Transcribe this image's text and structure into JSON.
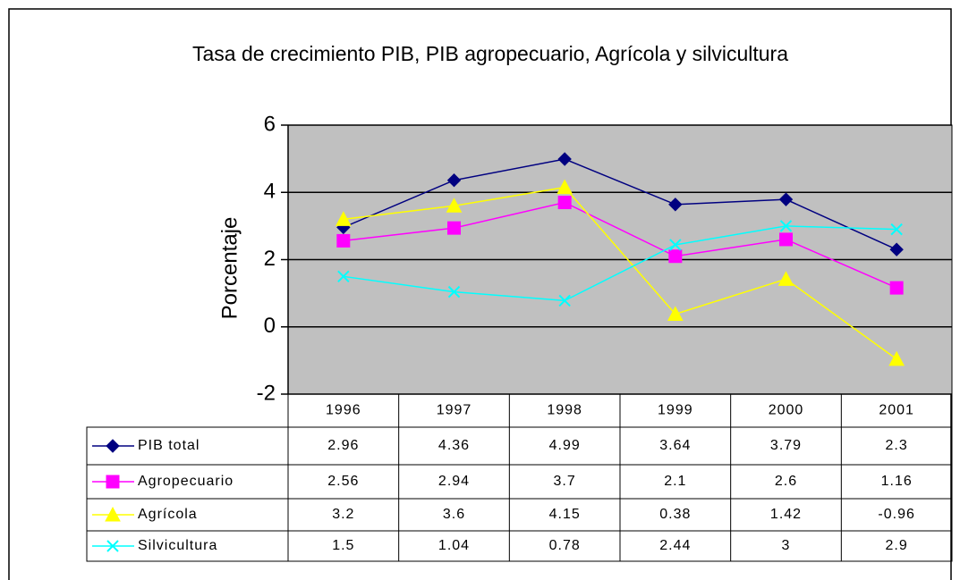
{
  "chart_data": {
    "type": "line",
    "title": "Tasa de crecimiento PIB, PIB agropecuario, Agrícola y silvicultura",
    "y_label": "Porcentaje",
    "categories": [
      "1996",
      "1997",
      "1998",
      "1999",
      "2000",
      "2001"
    ],
    "series": [
      {
        "name": "PIB total",
        "color": "#000080",
        "marker": "diamond",
        "values": [
          2.96,
          4.36,
          4.99,
          3.64,
          3.79,
          2.3
        ]
      },
      {
        "name": "Agropecuario",
        "color": "#ff00ff",
        "marker": "square",
        "values": [
          2.56,
          2.94,
          3.7,
          2.1,
          2.6,
          1.16
        ]
      },
      {
        "name": "Agrícola",
        "color": "#ffff00",
        "marker": "triangle",
        "values": [
          3.2,
          3.6,
          4.15,
          0.38,
          1.42,
          -0.96
        ]
      },
      {
        "name": "Silvicultura",
        "color": "#00ffff",
        "marker": "x",
        "values": [
          1.5,
          1.04,
          0.78,
          2.44,
          3,
          2.9
        ]
      }
    ],
    "ylim": [
      -2,
      6
    ],
    "yticks": [
      -2,
      0,
      2,
      4,
      6
    ],
    "grid": true
  }
}
